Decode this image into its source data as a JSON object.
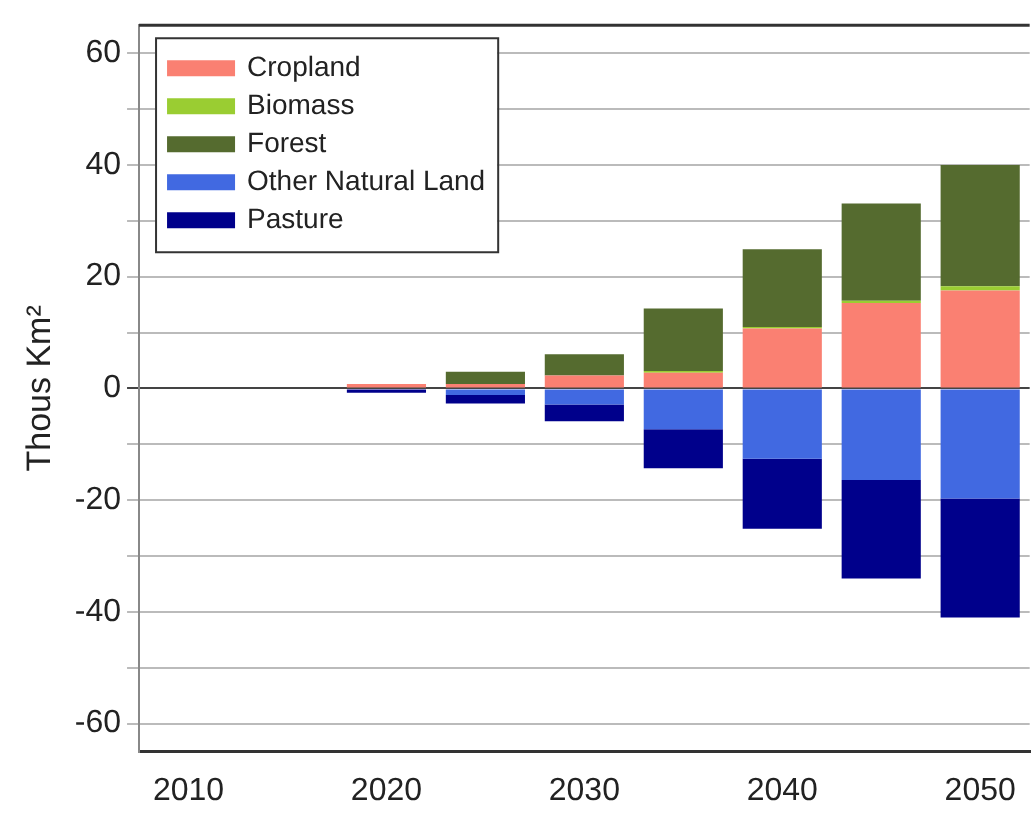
{
  "chart_data": {
    "type": "bar",
    "stacked": true,
    "ylabel": "Thous Km²",
    "categories": [
      "2010",
      null,
      "2020",
      null,
      "2030",
      null,
      "2040",
      null,
      "2050"
    ],
    "series": [
      {
        "name": "Cropland",
        "color": "#fa8072",
        "values": [
          null,
          null,
          0.8,
          0.8,
          2.3,
          2.8,
          10.7,
          15.3,
          17.5
        ]
      },
      {
        "name": "Biomass",
        "color": "#9acd32",
        "values": [
          null,
          null,
          null,
          null,
          null,
          0.3,
          0.3,
          0.4,
          0.8
        ]
      },
      {
        "name": "Forest",
        "color": "#556b2f",
        "values": [
          null,
          null,
          null,
          2.2,
          3.8,
          11.2,
          13.9,
          17.4,
          21.7
        ]
      },
      {
        "name": "Other Natural Land",
        "color": "#4169e1",
        "values": [
          null,
          null,
          null,
          -1.2,
          -2.9,
          -7.3,
          -12.6,
          -16.4,
          -19.7
        ]
      },
      {
        "name": "Pasture",
        "color": "#00008b",
        "values": [
          null,
          null,
          -0.8,
          -1.5,
          -3.0,
          -7.0,
          -12.5,
          -17.6,
          -21.3
        ]
      }
    ],
    "ylim": [
      -65,
      65
    ],
    "yticks": [
      -60,
      {
        "value": -50,
        "label": null
      },
      -40,
      {
        "value": -30,
        "label": null
      },
      -20,
      {
        "value": -10,
        "label": null
      },
      0,
      {
        "value": 10,
        "label": null
      },
      20,
      {
        "value": 30,
        "label": null
      },
      40,
      {
        "value": 50,
        "label": null
      },
      60
    ],
    "grid": "y",
    "legend": "top left"
  }
}
